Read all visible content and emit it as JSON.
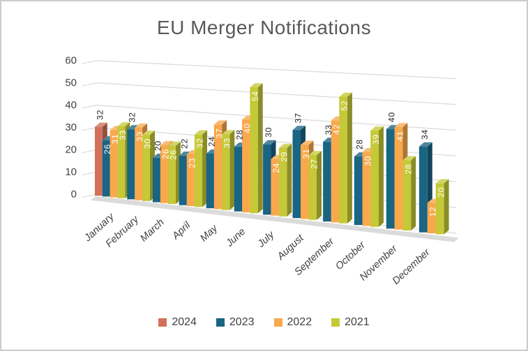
{
  "chart_data": {
    "type": "bar",
    "subtype": "3d-clustered-column",
    "title": "EU Merger Notifications",
    "categories": [
      "January",
      "February",
      "March",
      "April",
      "May",
      "June",
      "July",
      "August",
      "September",
      "October",
      "November",
      "December"
    ],
    "series": [
      {
        "name": "2024",
        "color": "#D2705A",
        "values": [
          32,
          null,
          null,
          null,
          null,
          null,
          null,
          null,
          null,
          null,
          null,
          null
        ]
      },
      {
        "name": "2023",
        "color": "#1A6484",
        "values": [
          26,
          32,
          20,
          22,
          24,
          28,
          30,
          37,
          33,
          28,
          40,
          34
        ]
      },
      {
        "name": "2022",
        "color": "#F9A84C",
        "values": [
          31,
          33,
          26,
          23,
          37,
          40,
          24,
          31,
          42,
          30,
          41,
          12
        ]
      },
      {
        "name": "2021",
        "color": "#C5C937",
        "values": [
          33,
          30,
          26,
          32,
          33,
          54,
          29,
          27,
          52,
          39,
          28,
          20
        ]
      }
    ],
    "ylabel": "",
    "xlabel": "",
    "ylim": [
      0,
      60
    ],
    "yticks": [
      0,
      10,
      20,
      30,
      40,
      50,
      60
    ],
    "grid": true,
    "legend_position": "bottom",
    "data_labels": {
      "placement_by_series": {
        "2024": "outside-black",
        "2023": "outside-black",
        "2022": "inside-white",
        "2021": "inside-white"
      },
      "exceptions": [
        {
          "series": "2023",
          "category": "January",
          "placement": "inside-white"
        }
      ]
    },
    "colors": {
      "title_text": "#595959",
      "axis_text": "#3F3F3F",
      "gridline": "#D9D9D9",
      "floor": "#DBDBDB",
      "outside_label": "#262626",
      "inside_label": "#FFFFFF",
      "background": "#FFFFFF",
      "border": "#CCCCCC"
    }
  }
}
